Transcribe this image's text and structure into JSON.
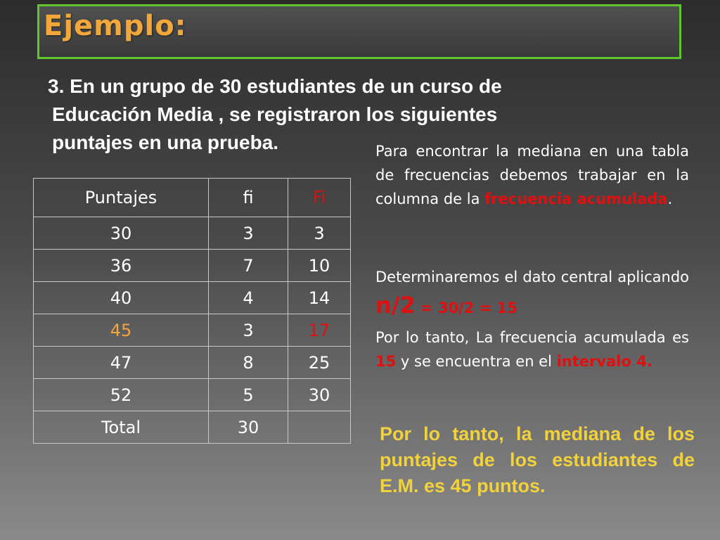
{
  "title": "Ejemplo:",
  "intro": {
    "line1": "3. En un grupo de 30 estudiantes de un curso de",
    "line2": "Educación Media , se registraron los siguientes",
    "line3": "puntajes en una prueba."
  },
  "table": {
    "headers": [
      "Puntajes",
      "fi",
      "Fi"
    ],
    "rows": [
      [
        "30",
        "3",
        "3"
      ],
      [
        "36",
        "7",
        "10"
      ],
      [
        "40",
        "4",
        "14"
      ],
      [
        "45",
        "3",
        "17"
      ],
      [
        "47",
        "8",
        "25"
      ],
      [
        "52",
        "5",
        "30"
      ]
    ],
    "total_label": "Total",
    "total_value": "30",
    "highlight_row_index": 3,
    "colors": {
      "highlight_puntaje": "#f2a640",
      "highlight_Fi": "#e01010"
    }
  },
  "notes": {
    "p1_a": "Para encontrar la mediana en una tabla de frecuencias debemos trabajar en la columna de la ",
    "p1_red": "frecuencia acumulada",
    "p1_end": ".",
    "p2_a": "Determinaremos el dato central aplicando ",
    "p2_n": "n/2",
    "p2_eq": " = 30/2 = 15",
    "p3_a": "Por lo tanto, La frecuencia acumulada es ",
    "p3_15": "15",
    "p3_b": " y se encuentra en el ",
    "p3_red": "intervalo 4."
  },
  "conclusion": "Por lo tanto, la mediana de los puntajes de los estudiantes de E.M. es 45 puntos.",
  "colors": {
    "accent_border": "#5fc72e",
    "title": "#f2a73a",
    "red": "#e01010",
    "conclusion": "#f2d23c"
  }
}
